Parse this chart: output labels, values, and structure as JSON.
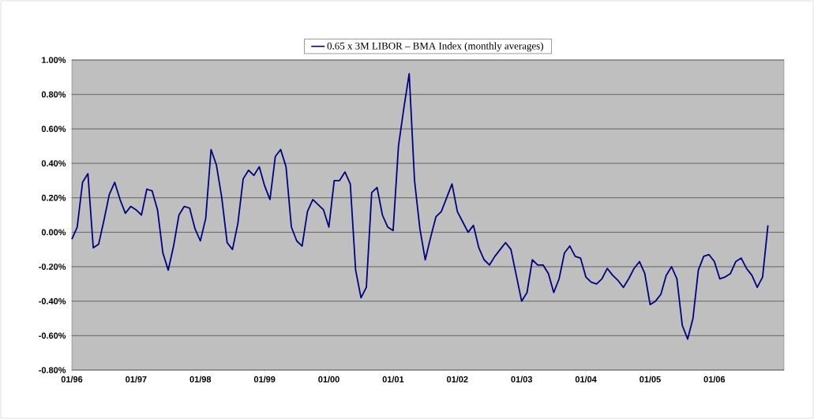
{
  "chart_data": {
    "type": "line",
    "x": [
      "1996-01",
      "1996-02",
      "1996-03",
      "1996-04",
      "1996-05",
      "1996-06",
      "1996-07",
      "1996-08",
      "1996-09",
      "1996-10",
      "1996-11",
      "1996-12",
      "1997-01",
      "1997-02",
      "1997-03",
      "1997-04",
      "1997-05",
      "1997-06",
      "1997-07",
      "1997-08",
      "1997-09",
      "1997-10",
      "1997-11",
      "1997-12",
      "1998-01",
      "1998-02",
      "1998-03",
      "1998-04",
      "1998-05",
      "1998-06",
      "1998-07",
      "1998-08",
      "1998-09",
      "1998-10",
      "1998-11",
      "1998-12",
      "1999-01",
      "1999-02",
      "1999-03",
      "1999-04",
      "1999-05",
      "1999-06",
      "1999-07",
      "1999-08",
      "1999-09",
      "1999-10",
      "1999-11",
      "1999-12",
      "2000-01",
      "2000-02",
      "2000-03",
      "2000-04",
      "2000-05",
      "2000-06",
      "2000-07",
      "2000-08",
      "2000-09",
      "2000-10",
      "2000-11",
      "2000-12",
      "2001-01",
      "2001-02",
      "2001-03",
      "2001-04",
      "2001-05",
      "2001-06",
      "2001-07",
      "2001-08",
      "2001-09",
      "2001-10",
      "2001-11",
      "2001-12",
      "2002-01",
      "2002-02",
      "2002-03",
      "2002-04",
      "2002-05",
      "2002-06",
      "2002-07",
      "2002-08",
      "2002-09",
      "2002-10",
      "2002-11",
      "2002-12",
      "2003-01",
      "2003-02",
      "2003-03",
      "2003-04",
      "2003-05",
      "2003-06",
      "2003-07",
      "2003-08",
      "2003-09",
      "2003-10",
      "2003-11",
      "2003-12",
      "2004-01",
      "2004-02",
      "2004-03",
      "2004-04",
      "2004-05",
      "2004-06",
      "2004-07",
      "2004-08",
      "2004-09",
      "2004-10",
      "2004-11",
      "2004-12",
      "2005-01",
      "2005-02",
      "2005-03",
      "2005-04",
      "2005-05",
      "2005-06",
      "2005-07",
      "2005-08",
      "2005-09",
      "2005-10",
      "2005-11",
      "2005-12",
      "2006-01",
      "2006-02",
      "2006-03",
      "2006-04",
      "2006-05",
      "2006-06",
      "2006-07",
      "2006-08",
      "2006-09",
      "2006-10",
      "2006-11"
    ],
    "series": [
      {
        "name": "0.65 x 3M LIBOR – BMA Index (monthly averages)",
        "color": "#000080",
        "values": [
          -0.04,
          0.03,
          0.29,
          0.34,
          -0.09,
          -0.07,
          0.07,
          0.22,
          0.29,
          0.19,
          0.11,
          0.15,
          0.13,
          0.1,
          0.25,
          0.24,
          0.13,
          -0.12,
          -0.22,
          -0.08,
          0.1,
          0.15,
          0.14,
          0.02,
          -0.05,
          0.08,
          0.48,
          0.39,
          0.2,
          -0.06,
          -0.1,
          0.05,
          0.31,
          0.36,
          0.33,
          0.38,
          0.27,
          0.19,
          0.44,
          0.48,
          0.38,
          0.03,
          -0.05,
          -0.08,
          0.12,
          0.19,
          0.16,
          0.13,
          0.03,
          0.3,
          0.3,
          0.35,
          0.28,
          -0.22,
          -0.38,
          -0.32,
          0.23,
          0.26,
          0.1,
          0.03,
          0.01,
          0.5,
          0.72,
          0.92,
          0.3,
          0.02,
          -0.16,
          -0.03,
          0.09,
          0.12,
          0.2,
          0.28,
          0.12,
          0.06,
          0.0,
          0.04,
          -0.09,
          -0.16,
          -0.19,
          -0.14,
          -0.1,
          -0.06,
          -0.1,
          -0.25,
          -0.4,
          -0.35,
          -0.16,
          -0.19,
          -0.19,
          -0.24,
          -0.35,
          -0.27,
          -0.12,
          -0.08,
          -0.14,
          -0.15,
          -0.26,
          -0.29,
          -0.3,
          -0.27,
          -0.21,
          -0.25,
          -0.28,
          -0.32,
          -0.27,
          -0.21,
          -0.17,
          -0.24,
          -0.42,
          -0.4,
          -0.36,
          -0.25,
          -0.2,
          -0.27,
          -0.54,
          -0.62,
          -0.5,
          -0.22,
          -0.14,
          -0.13,
          -0.17,
          -0.27,
          -0.26,
          -0.24,
          -0.17,
          -0.15,
          -0.21,
          -0.25,
          -0.32,
          -0.26,
          0.04
        ]
      }
    ],
    "xlim": [
      "1996-01",
      "2007-02"
    ],
    "xticks": [
      {
        "value": "1996-01",
        "label": "01/96"
      },
      {
        "value": "1997-01",
        "label": "01/97"
      },
      {
        "value": "1998-01",
        "label": "01/98"
      },
      {
        "value": "1999-01",
        "label": "01/99"
      },
      {
        "value": "2000-01",
        "label": "01/00"
      },
      {
        "value": "2001-01",
        "label": "01/01"
      },
      {
        "value": "2002-01",
        "label": "01/02"
      },
      {
        "value": "2003-01",
        "label": "01/03"
      },
      {
        "value": "2004-01",
        "label": "01/04"
      },
      {
        "value": "2005-01",
        "label": "01/05"
      },
      {
        "value": "2006-01",
        "label": "01/06"
      }
    ],
    "ylim": [
      -0.8,
      1.0
    ],
    "yticks": [
      {
        "value": -0.8,
        "label": "-0.80%"
      },
      {
        "value": -0.6,
        "label": "-0.60%"
      },
      {
        "value": -0.4,
        "label": "-0.40%"
      },
      {
        "value": -0.2,
        "label": "-0.20%"
      },
      {
        "value": 0,
        "label": "0.00%"
      },
      {
        "value": 0.2,
        "label": "0.20%"
      },
      {
        "value": 0.4,
        "label": "0.40%"
      },
      {
        "value": 0.6,
        "label": "0.60%"
      },
      {
        "value": 0.8,
        "label": "0.80%"
      },
      {
        "value": 1.0,
        "label": "1.00%"
      }
    ],
    "grid": "y",
    "legend": "top",
    "marker": "none",
    "line_style": "solid"
  }
}
